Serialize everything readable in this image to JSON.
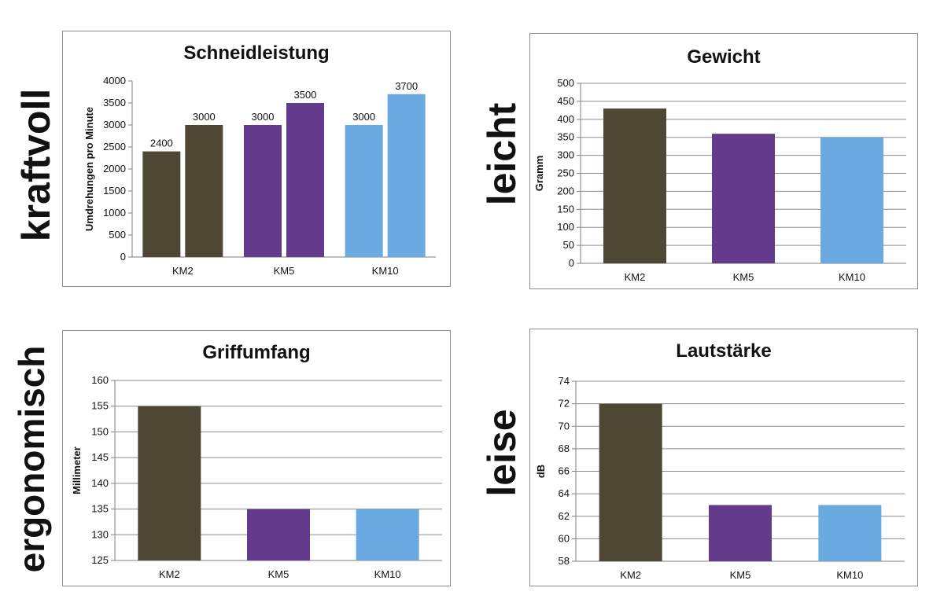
{
  "side_labels": {
    "kraftvoll": "kraftvoll",
    "leicht": "leicht",
    "ergonomisch": "ergonomisch",
    "leise": "leise"
  },
  "colors": {
    "KM2": "#4d4733",
    "KM5": "#633a8c",
    "KM10": "#6aaae0",
    "grid": "#8c8c8c",
    "axis": "#7f7f7f"
  },
  "chart_data": [
    {
      "type": "bar",
      "title": "Schneidleistung",
      "ylabel": "Umdrehungen pro Minute",
      "categories": [
        "KM2",
        "KM5",
        "KM10"
      ],
      "bars_per_category": 2,
      "values": [
        [
          2400,
          3000
        ],
        [
          3000,
          3500
        ],
        [
          3000,
          3700
        ]
      ],
      "data_labels": [
        [
          "2400",
          "3000"
        ],
        [
          "3000",
          "3500"
        ],
        [
          "3000",
          "3700"
        ]
      ],
      "ylim": [
        0,
        4000
      ],
      "yticks": [
        0,
        500,
        1000,
        1500,
        2000,
        2500,
        3000,
        3500,
        4000
      ],
      "grid": false
    },
    {
      "type": "bar",
      "title": "Gewicht",
      "ylabel": "Gramm",
      "categories": [
        "KM2",
        "KM5",
        "KM10"
      ],
      "values": [
        430,
        360,
        350
      ],
      "ylim": [
        0,
        500
      ],
      "yticks": [
        0,
        50,
        100,
        150,
        200,
        250,
        300,
        350,
        400,
        450,
        500
      ],
      "grid": true
    },
    {
      "type": "bar",
      "title": "Griffumfang",
      "ylabel": "Millimeter",
      "categories": [
        "KM2",
        "KM5",
        "KM10"
      ],
      "values": [
        155,
        135,
        135
      ],
      "ylim": [
        125,
        160
      ],
      "yticks": [
        125,
        130,
        135,
        140,
        145,
        150,
        155,
        160
      ],
      "grid": true
    },
    {
      "type": "bar",
      "title": "Lautstärke",
      "ylabel": "dB",
      "categories": [
        "KM2",
        "KM5",
        "KM10"
      ],
      "values": [
        72,
        63,
        63
      ],
      "ylim": [
        58,
        74
      ],
      "yticks": [
        58,
        60,
        62,
        64,
        66,
        68,
        70,
        72,
        74
      ],
      "grid": true
    }
  ]
}
